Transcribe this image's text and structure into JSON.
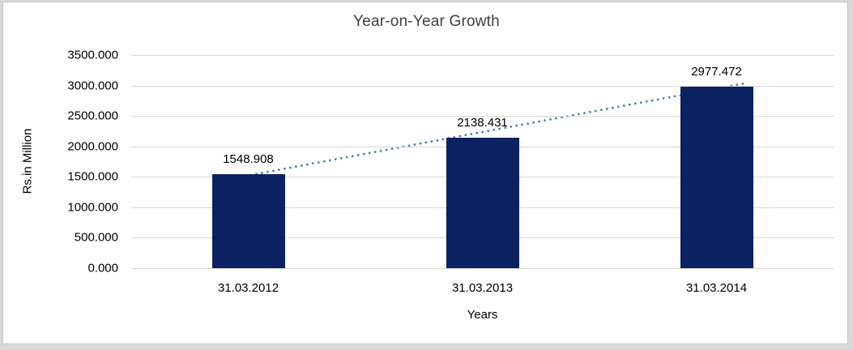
{
  "chart_data": {
    "type": "bar",
    "title": "Year-on-Year Growth",
    "xlabel": "Years",
    "ylabel": "Rs.in Million",
    "categories": [
      "31.03.2012",
      "31.03.2013",
      "31.03.2014"
    ],
    "values": [
      1548.908,
      2138.431,
      2977.472
    ],
    "value_labels": [
      "1548.908",
      "2138.431",
      "2977.472"
    ],
    "ylim": [
      0,
      3500
    ],
    "ytick_step": 500,
    "ytick_labels": [
      "0.000",
      "500.000",
      "1000.000",
      "1500.000",
      "2000.000",
      "2500.000",
      "3000.000",
      "3500.000"
    ],
    "grid": true,
    "legend": "none",
    "trendline": {
      "style": "dotted",
      "color": "#4F81BD"
    },
    "colors": {
      "bar": "#0B2161",
      "gridline": "#D9D9D9",
      "frame_border": "#C6C6C6",
      "text": "#000000",
      "title_text": "#3F3F3F"
    }
  }
}
